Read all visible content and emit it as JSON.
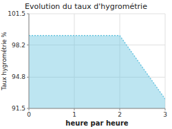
{
  "chart_data": {
    "type": "area",
    "title": "Evolution du taux d'hygrométrie",
    "xlabel": "heure par heure",
    "ylabel": "Taux hygrométrie %",
    "x": [
      0,
      2,
      3
    ],
    "values": [
      99.2,
      99.2,
      92.5
    ],
    "color": "#6cc5e0",
    "line_style": "dotted",
    "xlim": [
      0,
      3
    ],
    "ylim": [
      91.5,
      101.5
    ],
    "xticks": [
      0,
      1,
      2,
      3
    ],
    "yticks": [
      91.5,
      94.8,
      98.2,
      101.5
    ],
    "grid": true
  }
}
